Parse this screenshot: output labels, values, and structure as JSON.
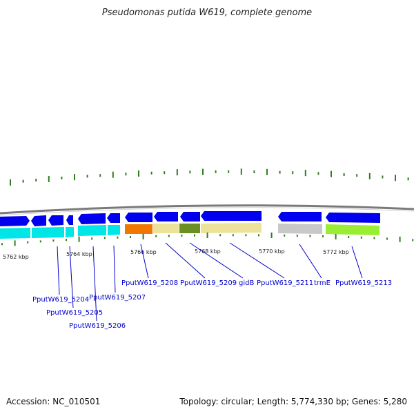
{
  "title": "Pseudomonas putida W619, complete genome",
  "footer": {
    "accession": "Accession: NC_010501",
    "summary": "Topology: circular; Length: 5,774,330 bp; Genes: 5,280"
  },
  "colors": {
    "forward_gene": "#0000ee",
    "cyan_track": "#00e5e5",
    "orange": "#f07800",
    "khaki": "#ede29a",
    "olive": "#6b8f23",
    "grey": "#c8c8c8",
    "lime": "#99ee33",
    "tick": "#2e7d1e",
    "label_link": "#0000cc",
    "backbone": "#808080"
  },
  "ticks": {
    "labels": [
      "5762 kbp",
      "5764 kbp",
      "5766 kbp",
      "5768 kbp",
      "5770 kbp",
      "5772 kbp"
    ]
  },
  "genes": {
    "labels": [
      "PputW619_5204",
      "PputW619_5205",
      "PputW619_5206",
      "PputW619_5207",
      "PputW619_5208",
      "PputW619_5209",
      "gidB",
      "PputW619_5211",
      "trmE",
      "PputW619_5213"
    ]
  }
}
